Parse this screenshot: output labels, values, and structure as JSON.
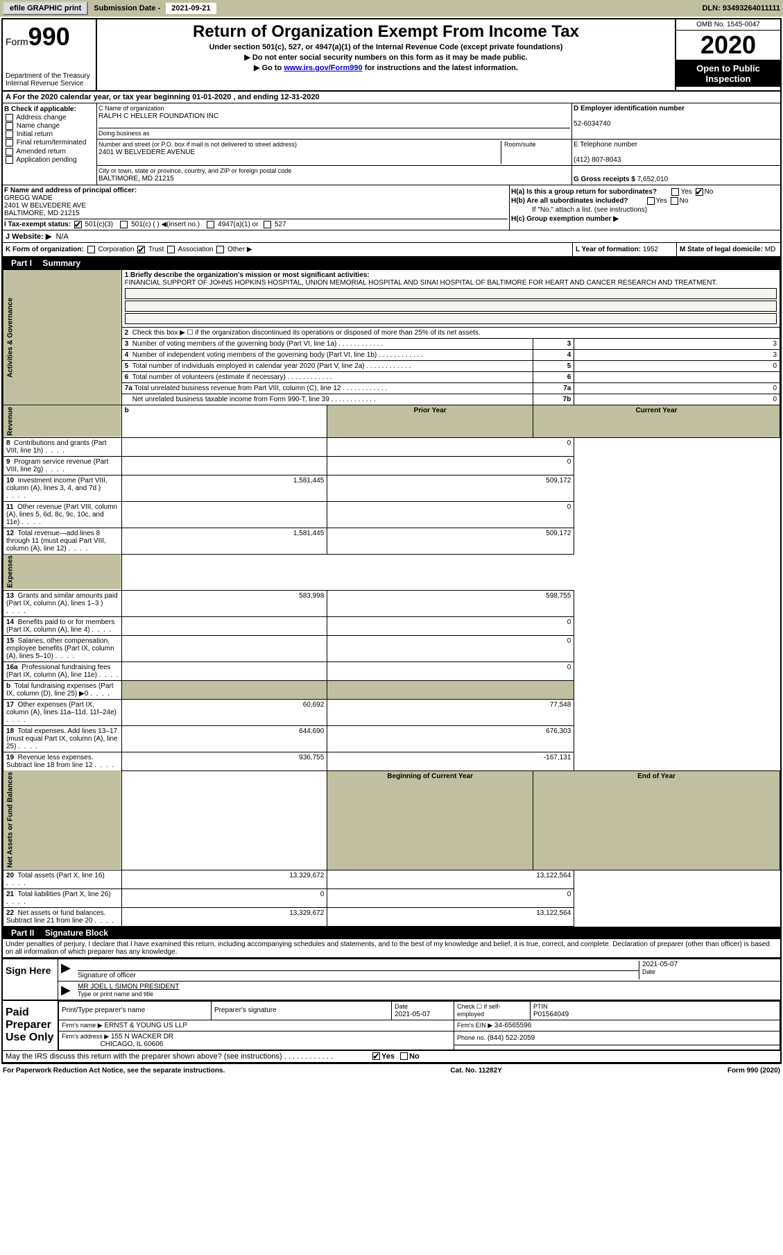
{
  "header": {
    "efile": "efile GRAPHIC print",
    "sub_label": "Submission Date - ",
    "sub_date": "2021-09-21",
    "dln": "DLN: 93493264011111"
  },
  "form": {
    "form_label": "Form",
    "form_num": "990",
    "dept": "Department of the Treasury",
    "irs": "Internal Revenue Service",
    "title": "Return of Organization Exempt From Income Tax",
    "subtitle": "Under section 501(c), 527, or 4947(a)(1) of the Internal Revenue Code (except private foundations)",
    "arrow1": "▶ Do not enter social security numbers on this form as it may be made public.",
    "arrow2_pre": "▶ Go to ",
    "arrow2_link": "www.irs.gov/Form990",
    "arrow2_post": " for instructions and the latest information.",
    "omb": "OMB No. 1545-0047",
    "year": "2020",
    "open": "Open to Public Inspection"
  },
  "row_a": "A For the 2020 calendar year, or tax year beginning 01-01-2020    , and ending 12-31-2020",
  "sec_b": {
    "title": "B Check if applicable:",
    "opts": [
      "Address change",
      "Name change",
      "Initial return",
      "Final return/terminated",
      "Amended return",
      "Application pending"
    ]
  },
  "sec_c": {
    "label": "C Name of organization",
    "name": "RALPH C HELLER FOUNDATION INC",
    "dba_label": "Doing business as",
    "addr_label": "Number and street (or P.O. box if mail is not delivered to street address)",
    "room_label": "Room/suite",
    "addr": "2401 W BELVEDERE AVENUE",
    "city_label": "City or town, state or province, country, and ZIP or foreign postal code",
    "city": "BALTIMORE, MD  21215"
  },
  "sec_d": {
    "label": "D Employer identification number",
    "ein": "52-6034740"
  },
  "sec_e": {
    "label": "E Telephone number",
    "phone": "(412) 807-8043"
  },
  "sec_g": {
    "label": "G Gross receipts $",
    "amount": "7,652,010"
  },
  "sec_f": {
    "label": "F  Name and address of principal officer:",
    "name": "GREGG WADE",
    "addr1": "2401 W BELVEDERE AVE",
    "addr2": "BALTIMORE, MD  21215"
  },
  "sec_h": {
    "ha": "H(a)  Is this a group return for subordinates?",
    "hb": "H(b)  Are all subordinates included?",
    "hb_note": "If \"No,\" attach a list. (see instructions)",
    "hc": "H(c)  Group exemption number ▶",
    "yes": "Yes",
    "no": "No"
  },
  "sec_i": {
    "label": "I   Tax-exempt status:",
    "opts": [
      "501(c)(3)",
      "501(c) (  ) ◀(insert no.)",
      "4947(a)(1) or",
      "527"
    ]
  },
  "sec_j": {
    "label": "J   Website: ▶",
    "val": "N/A"
  },
  "sec_k": {
    "label": "K Form of organization:",
    "opts": [
      "Corporation",
      "Trust",
      "Association",
      "Other ▶"
    ]
  },
  "sec_l": {
    "label": "L Year of formation:",
    "val": "1952"
  },
  "sec_m": {
    "label": "M State of legal domicile:",
    "val": "MD"
  },
  "part1": {
    "num": "Part I",
    "title": "Summary"
  },
  "mission": {
    "label": "1  Briefly describe the organization's mission or most significant activities:",
    "text": "FINANCIAL SUPPORT OF JOHNS HOPKINS HOSPITAL, UNION MEMORIAL HOSPITAL AND SINAI HOSPITAL OF BALTIMORE FOR HEART AND CANCER RESEARCH AND TREATMENT."
  },
  "lines": {
    "l2": {
      "num": "2",
      "text": "Check this box ▶ ☐  if the organization discontinued its operations or disposed of more than 25% of its net assets."
    },
    "l3": {
      "num": "3",
      "text": "Number of voting members of the governing body (Part VI, line 1a)",
      "box": "3",
      "val": "3"
    },
    "l4": {
      "num": "4",
      "text": "Number of independent voting members of the governing body (Part VI, line 1b)",
      "box": "4",
      "val": "3"
    },
    "l5": {
      "num": "5",
      "text": "Total number of individuals employed in calendar year 2020 (Part V, line 2a)",
      "box": "5",
      "val": "0"
    },
    "l6": {
      "num": "6",
      "text": "Total number of volunteers (estimate if necessary)",
      "box": "6",
      "val": ""
    },
    "l7a": {
      "num": "7a",
      "text": "Total unrelated business revenue from Part VIII, column (C), line 12",
      "box": "7a",
      "val": "0"
    },
    "l7b": {
      "num": "",
      "text": "Net unrelated business taxable income from Form 990-T, line 39",
      "box": "7b",
      "val": "0"
    }
  },
  "headers": {
    "prior": "Prior Year",
    "current": "Current Year",
    "boy": "Beginning of Current Year",
    "eoy": "End of Year"
  },
  "revenue_rows": [
    {
      "num": "8",
      "text": "Contributions and grants (Part VIII, line 1h)",
      "prior": "",
      "cur": "0"
    },
    {
      "num": "9",
      "text": "Program service revenue (Part VIII, line 2g)",
      "prior": "",
      "cur": "0"
    },
    {
      "num": "10",
      "text": "Investment income (Part VIII, column (A), lines 3, 4, and 7d )",
      "prior": "1,581,445",
      "cur": "509,172"
    },
    {
      "num": "11",
      "text": "Other revenue (Part VIII, column (A), lines 5, 6d, 8c, 9c, 10c, and 11e)",
      "prior": "",
      "cur": "0"
    },
    {
      "num": "12",
      "text": "Total revenue—add lines 8 through 11 (must equal Part VIII, column (A), line 12)",
      "prior": "1,581,445",
      "cur": "509,172"
    }
  ],
  "expense_rows": [
    {
      "num": "13",
      "text": "Grants and similar amounts paid (Part IX, column (A), lines 1–3 )",
      "prior": "583,998",
      "cur": "598,755"
    },
    {
      "num": "14",
      "text": "Benefits paid to or for members (Part IX, column (A), line 4)",
      "prior": "",
      "cur": "0"
    },
    {
      "num": "15",
      "text": "Salaries, other compensation, employee benefits (Part IX, column (A), lines 5–10)",
      "prior": "",
      "cur": "0"
    },
    {
      "num": "16a",
      "text": "Professional fundraising fees (Part IX, column (A), line 11e)",
      "prior": "",
      "cur": "0"
    },
    {
      "num": "b",
      "text": "Total fundraising expenses (Part IX, column (D), line 25) ▶0",
      "prior": "SHADE",
      "cur": "SHADE"
    },
    {
      "num": "17",
      "text": "Other expenses (Part IX, column (A), lines 11a–11d, 11f–24e)",
      "prior": "60,692",
      "cur": "77,548"
    },
    {
      "num": "18",
      "text": "Total expenses. Add lines 13–17 (must equal Part IX, column (A), line 25)",
      "prior": "644,690",
      "cur": "676,303"
    },
    {
      "num": "19",
      "text": "Revenue less expenses. Subtract line 18 from line 12",
      "prior": "936,755",
      "cur": "-167,131"
    }
  ],
  "net_rows": [
    {
      "num": "20",
      "text": "Total assets (Part X, line 16)",
      "prior": "13,329,672",
      "cur": "13,122,564"
    },
    {
      "num": "21",
      "text": "Total liabilities (Part X, line 26)",
      "prior": "0",
      "cur": "0"
    },
    {
      "num": "22",
      "text": "Net assets or fund balances. Subtract line 21 from line 20",
      "prior": "13,329,672",
      "cur": "13,122,564"
    }
  ],
  "sidebars": {
    "act": "Activities & Governance",
    "rev": "Revenue",
    "exp": "Expenses",
    "net": "Net Assets or Fund Balances"
  },
  "part2": {
    "num": "Part II",
    "title": "Signature Block"
  },
  "sig_text": "Under penalties of perjury, I declare that I have examined this return, including accompanying schedules and statements, and to the best of my knowledge and belief, it is true, correct, and complete. Declaration of preparer (other than officer) is based on all information of which preparer has any knowledge.",
  "sign": {
    "here": "Sign Here",
    "officer": "Signature of officer",
    "date_label": "Date",
    "date": "2021-05-07",
    "name": "MR JOEL L SIMON  PRESIDENT",
    "name_label": "Type or print name and title"
  },
  "prep": {
    "title": "Paid Preparer Use Only",
    "h1": "Print/Type preparer's name",
    "h2": "Preparer's signature",
    "h3": "Date",
    "h3v": "2021-05-07",
    "h4": "Check ☐ if self-employed",
    "h5": "PTIN",
    "h5v": "P01564049",
    "firm_label": "Firm's name      ▶",
    "firm": "ERNST & YOUNG US LLP",
    "ein_label": "Firm's EIN ▶",
    "ein": "34-6565596",
    "addr_label": "Firm's address ▶",
    "addr1": "155 N WACKER DR",
    "addr2": "CHICAGO, IL  60606",
    "phone_label": "Phone no.",
    "phone": "(844) 522-2059"
  },
  "discuss": "May the IRS discuss this return with the preparer shown above? (see instructions)",
  "footer": {
    "left": "For Paperwork Reduction Act Notice, see the separate instructions.",
    "mid": "Cat. No. 11282Y",
    "right": "Form 990 (2020)"
  }
}
